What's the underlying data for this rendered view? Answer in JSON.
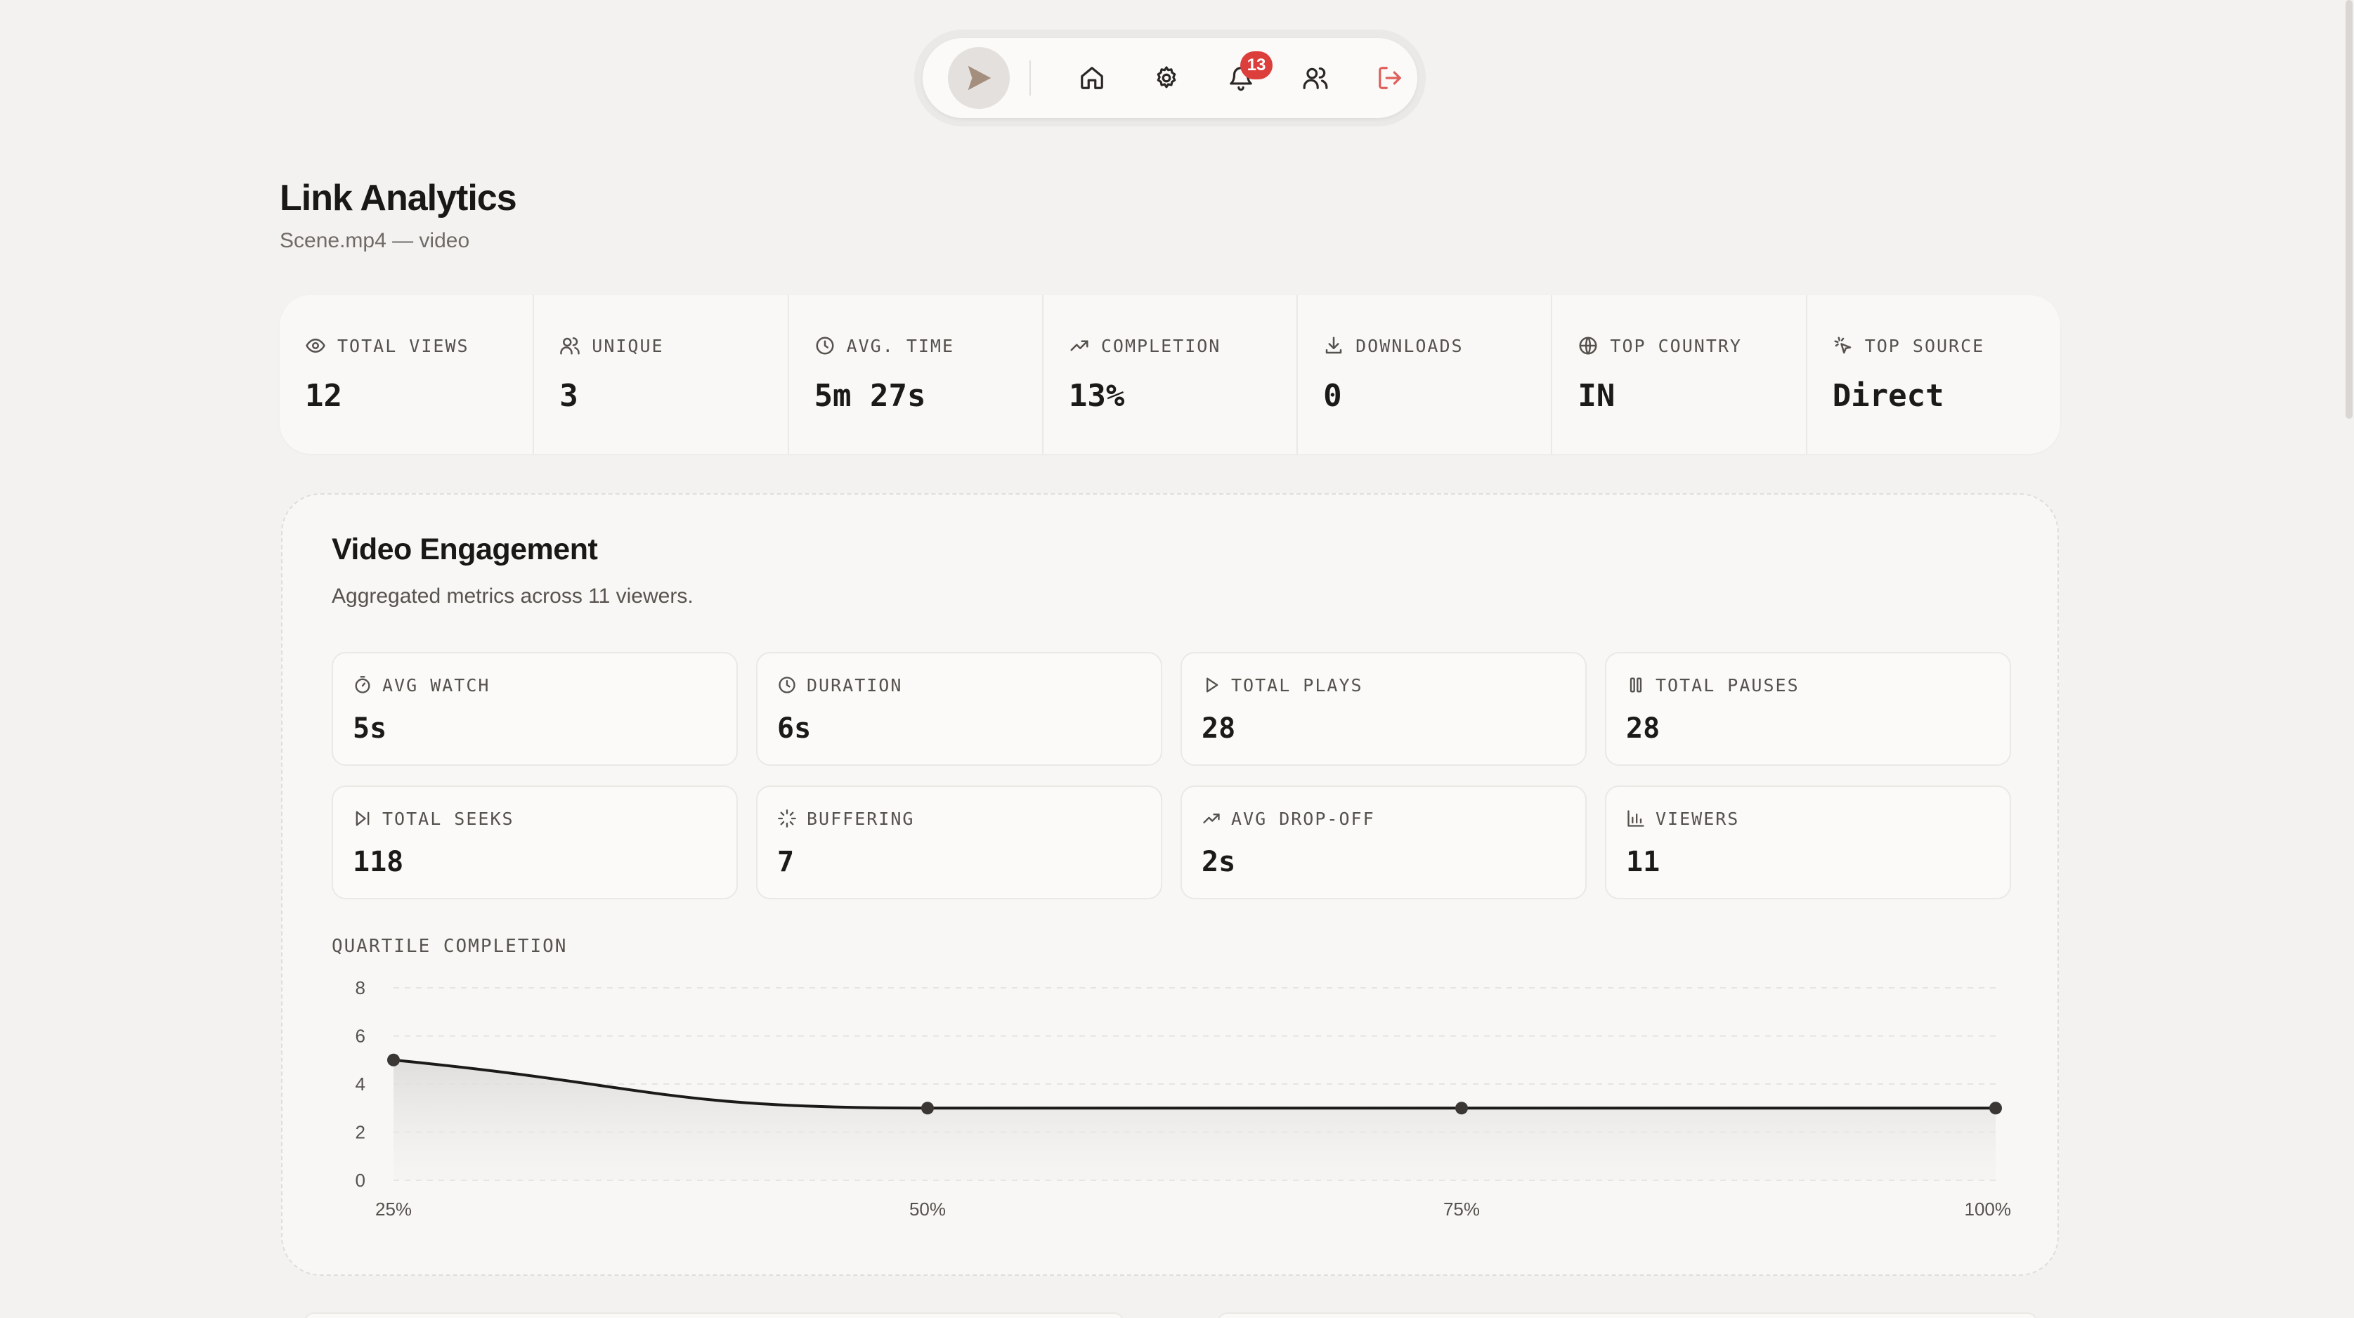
{
  "nav": {
    "notification_count": "13",
    "items": [
      "logo-icon",
      "home-icon",
      "gear-icon",
      "bell-icon",
      "users-icon",
      "logout-icon"
    ]
  },
  "header": {
    "title": "Link Analytics",
    "subtitle": "Scene.mp4 — video"
  },
  "stats": [
    {
      "icon": "eye-icon",
      "label": "TOTAL VIEWS",
      "value": "12"
    },
    {
      "icon": "user-icon",
      "label": "UNIQUE",
      "value": "3"
    },
    {
      "icon": "clock-icon",
      "label": "AVG. TIME",
      "value": "5m 27s"
    },
    {
      "icon": "trend-up-icon",
      "label": "COMPLETION",
      "value": "13%"
    },
    {
      "icon": "download-icon",
      "label": "DOWNLOADS",
      "value": "0"
    },
    {
      "icon": "globe-icon",
      "label": "TOP COUNTRY",
      "value": "IN"
    },
    {
      "icon": "cursor-click-icon",
      "label": "TOP SOURCE",
      "value": "Direct"
    }
  ],
  "engagement": {
    "title": "Video Engagement",
    "subtitle": "Aggregated metrics across 11 viewers.",
    "metrics": [
      {
        "icon": "timer-icon",
        "label": "AVG WATCH",
        "value": "5s"
      },
      {
        "icon": "clock-icon",
        "label": "DURATION",
        "value": "6s"
      },
      {
        "icon": "play-icon",
        "label": "TOTAL PLAYS",
        "value": "28"
      },
      {
        "icon": "pause-icon",
        "label": "TOTAL PAUSES",
        "value": "28"
      },
      {
        "icon": "skip-forward-icon",
        "label": "TOTAL SEEKS",
        "value": "118"
      },
      {
        "icon": "loader-icon",
        "label": "BUFFERING",
        "value": "7"
      },
      {
        "icon": "trend-up-icon",
        "label": "AVG DROP-OFF",
        "value": "2s"
      },
      {
        "icon": "bar-chart-icon",
        "label": "VIEWERS",
        "value": "11"
      }
    ],
    "chart_label": "QUARTILE COMPLETION"
  },
  "chart_data": {
    "type": "area",
    "x": [
      "25%",
      "50%",
      "75%",
      "100%"
    ],
    "series": [
      {
        "values": [
          5,
          3,
          3,
          3
        ]
      }
    ],
    "yticks": [
      0,
      2,
      4,
      6,
      8
    ],
    "ylim": [
      0,
      8
    ],
    "grid": true,
    "line_color": "#1c1a18",
    "fill_color": "#e4e2e0"
  }
}
